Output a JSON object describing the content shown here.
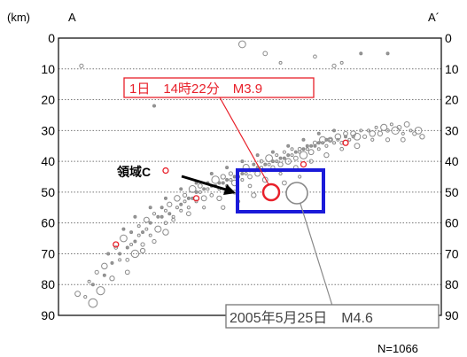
{
  "chart_data": {
    "type": "scatter",
    "title": "",
    "ylabel": "(km)",
    "ylim": [
      0,
      90
    ],
    "y_ticks": [
      "0",
      "10",
      "20",
      "30",
      "40",
      "50",
      "60",
      "70",
      "80",
      "90"
    ],
    "y_reversed": true,
    "grid": "horizontal-dotted",
    "section_start": "A",
    "section_end": "A´",
    "count_label": "N=1066",
    "region_label": "領域C",
    "highlights": [
      {
        "label": "1日　14時22分　M3.9",
        "x_frac": 0.54,
        "y": 46,
        "mag": 3.9,
        "color": "#e8202a"
      },
      {
        "label": "2005年5月25日　M4.6",
        "x_frac": 0.64,
        "y": 54,
        "mag": 4.6,
        "color": "#888888"
      }
    ],
    "series": [
      {
        "values_desc": "hypocenters",
        "points": [
          [
            0.05,
            83
          ],
          [
            0.07,
            84
          ],
          [
            0.09,
            86
          ],
          [
            0.08,
            79
          ],
          [
            0.1,
            76
          ],
          [
            0.12,
            74
          ],
          [
            0.11,
            82
          ],
          [
            0.13,
            70
          ],
          [
            0.14,
            78
          ],
          [
            0.15,
            68
          ],
          [
            0.16,
            72
          ],
          [
            0.17,
            65
          ],
          [
            0.18,
            76
          ],
          [
            0.19,
            63
          ],
          [
            0.2,
            70
          ],
          [
            0.21,
            61
          ],
          [
            0.22,
            67
          ],
          [
            0.23,
            59
          ],
          [
            0.24,
            64
          ],
          [
            0.25,
            57
          ],
          [
            0.26,
            62
          ],
          [
            0.27,
            55
          ],
          [
            0.28,
            60
          ],
          [
            0.29,
            54
          ],
          [
            0.3,
            58
          ],
          [
            0.31,
            52
          ],
          [
            0.32,
            56
          ],
          [
            0.33,
            51
          ],
          [
            0.34,
            55
          ],
          [
            0.35,
            49
          ],
          [
            0.36,
            53
          ],
          [
            0.37,
            48
          ],
          [
            0.38,
            52
          ],
          [
            0.39,
            47
          ],
          [
            0.4,
            51
          ],
          [
            0.41,
            46
          ],
          [
            0.42,
            49
          ],
          [
            0.43,
            45
          ],
          [
            0.44,
            48
          ],
          [
            0.45,
            44
          ],
          [
            0.46,
            47
          ],
          [
            0.47,
            43
          ],
          [
            0.48,
            46
          ],
          [
            0.49,
            42
          ],
          [
            0.5,
            45
          ],
          [
            0.51,
            41
          ],
          [
            0.52,
            44
          ],
          [
            0.53,
            40
          ],
          [
            0.54,
            43
          ],
          [
            0.55,
            39
          ],
          [
            0.56,
            42
          ],
          [
            0.57,
            38
          ],
          [
            0.58,
            41
          ],
          [
            0.59,
            37
          ],
          [
            0.6,
            40
          ],
          [
            0.61,
            36
          ],
          [
            0.62,
            39
          ],
          [
            0.63,
            36
          ],
          [
            0.64,
            38
          ],
          [
            0.65,
            35
          ],
          [
            0.66,
            37
          ],
          [
            0.67,
            34
          ],
          [
            0.68,
            36
          ],
          [
            0.69,
            33
          ],
          [
            0.7,
            35
          ],
          [
            0.71,
            33
          ],
          [
            0.72,
            34
          ],
          [
            0.73,
            32
          ],
          [
            0.74,
            34
          ],
          [
            0.75,
            31
          ],
          [
            0.76,
            33
          ],
          [
            0.77,
            31
          ],
          [
            0.78,
            32
          ],
          [
            0.79,
            30
          ],
          [
            0.8,
            32
          ],
          [
            0.81,
            30
          ],
          [
            0.82,
            31
          ],
          [
            0.83,
            29
          ],
          [
            0.84,
            31
          ],
          [
            0.85,
            29
          ],
          [
            0.86,
            30
          ],
          [
            0.87,
            28
          ],
          [
            0.88,
            30
          ],
          [
            0.89,
            29
          ],
          [
            0.9,
            31
          ],
          [
            0.91,
            28
          ],
          [
            0.92,
            30
          ],
          [
            0.93,
            31
          ],
          [
            0.94,
            30
          ],
          [
            0.95,
            32
          ],
          [
            0.17,
            62
          ],
          [
            0.19,
            67
          ],
          [
            0.21,
            64
          ],
          [
            0.23,
            62
          ],
          [
            0.26,
            58
          ],
          [
            0.28,
            56
          ],
          [
            0.31,
            55
          ],
          [
            0.33,
            53
          ],
          [
            0.35,
            52
          ],
          [
            0.37,
            50
          ],
          [
            0.39,
            49
          ],
          [
            0.41,
            48
          ],
          [
            0.43,
            47
          ],
          [
            0.45,
            46
          ],
          [
            0.47,
            45
          ],
          [
            0.49,
            44
          ],
          [
            0.51,
            43
          ],
          [
            0.53,
            42
          ],
          [
            0.55,
            41
          ],
          [
            0.57,
            40
          ],
          [
            0.59,
            39
          ],
          [
            0.61,
            38
          ],
          [
            0.63,
            37
          ],
          [
            0.65,
            36
          ],
          [
            0.67,
            35
          ],
          [
            0.69,
            34
          ],
          [
            0.71,
            33
          ],
          [
            0.73,
            33
          ],
          [
            0.75,
            32
          ],
          [
            0.77,
            32
          ],
          [
            0.09,
            80
          ],
          [
            0.12,
            77
          ],
          [
            0.14,
            73
          ],
          [
            0.16,
            70
          ],
          [
            0.18,
            68
          ],
          [
            0.2,
            66
          ],
          [
            0.22,
            63
          ],
          [
            0.24,
            60
          ],
          [
            0.27,
            58
          ],
          [
            0.29,
            57
          ],
          [
            0.32,
            54
          ],
          [
            0.34,
            52
          ],
          [
            0.36,
            50
          ],
          [
            0.38,
            49
          ],
          [
            0.4,
            48
          ],
          [
            0.42,
            47
          ],
          [
            0.44,
            46
          ],
          [
            0.46,
            45
          ],
          [
            0.48,
            44
          ],
          [
            0.5,
            43
          ],
          [
            0.52,
            42
          ],
          [
            0.54,
            41
          ],
          [
            0.56,
            40
          ],
          [
            0.58,
            39
          ],
          [
            0.6,
            38
          ],
          [
            0.62,
            37
          ],
          [
            0.64,
            36
          ],
          [
            0.66,
            35
          ],
          [
            0.68,
            34
          ],
          [
            0.7,
            33
          ],
          [
            0.3,
            59
          ],
          [
            0.34,
            57
          ],
          [
            0.38,
            55
          ],
          [
            0.42,
            52
          ],
          [
            0.46,
            50
          ],
          [
            0.5,
            48
          ],
          [
            0.54,
            46
          ],
          [
            0.58,
            44
          ],
          [
            0.62,
            42
          ],
          [
            0.66,
            40
          ],
          [
            0.7,
            38
          ],
          [
            0.74,
            36
          ],
          [
            0.78,
            35
          ],
          [
            0.82,
            33
          ],
          [
            0.86,
            33
          ],
          [
            0.9,
            33
          ],
          [
            0.2,
            58
          ],
          [
            0.24,
            55
          ],
          [
            0.28,
            52
          ],
          [
            0.32,
            49
          ],
          [
            0.36,
            47
          ],
          [
            0.4,
            44
          ],
          [
            0.44,
            42
          ],
          [
            0.48,
            40
          ],
          [
            0.52,
            38
          ],
          [
            0.56,
            37
          ],
          [
            0.6,
            35
          ],
          [
            0.64,
            33
          ],
          [
            0.68,
            31
          ],
          [
            0.72,
            30
          ],
          [
            0.43,
            55
          ],
          [
            0.47,
            53
          ],
          [
            0.51,
            51
          ],
          [
            0.55,
            49
          ],
          [
            0.59,
            47
          ],
          [
            0.63,
            45
          ],
          [
            0.28,
            63
          ],
          [
            0.25,
            66
          ],
          [
            0.22,
            69
          ],
          [
            0.18,
            72
          ],
          [
            0.06,
            9
          ],
          [
            0.48,
            2
          ],
          [
            0.54,
            5
          ],
          [
            0.58,
            8
          ],
          [
            0.67,
            6
          ],
          [
            0.72,
            9
          ],
          [
            0.74,
            8
          ],
          [
            0.86,
            5
          ],
          [
            0.25,
            22
          ],
          [
            0.79,
            5
          ]
        ],
        "mags": [
          2.5,
          2.0,
          3.1,
          1.8,
          2.2,
          2.6,
          3.0,
          1.6,
          2.4,
          2.1,
          1.9,
          2.8,
          2.3,
          1.5,
          2.9,
          1.7,
          2.2,
          2.5,
          1.8,
          2.0,
          2.7,
          1.6,
          2.1,
          2.4,
          1.9,
          2.6,
          1.7,
          2.2,
          2.0,
          2.8,
          1.8,
          2.3,
          2.5,
          1.6,
          2.1,
          2.9,
          1.9,
          2.4,
          1.7,
          2.2,
          2.6,
          2.0,
          1.8,
          2.7,
          2.3,
          1.6,
          2.5,
          2.1,
          1.9,
          2.8,
          2.2,
          1.7,
          2.4,
          2.0,
          2.6,
          1.8,
          2.3,
          2.1,
          2.9,
          1.6,
          2.5,
          2.2,
          1.9,
          2.7,
          2.0,
          2.4,
          1.8,
          2.6,
          2.1,
          2.3,
          1.7,
          2.5,
          2.8,
          1.9,
          2.2,
          2.0,
          2.6,
          1.8,
          2.4,
          2.7,
          2.1,
          1.9,
          2.9,
          2.3,
          2.0,
          2.5,
          1.7,
          2.2,
          2.8,
          2.4,
          1.6,
          1.8,
          1.7,
          1.9,
          1.6,
          1.8,
          1.7,
          1.9,
          1.6,
          1.8,
          1.7,
          1.9,
          1.6,
          1.8,
          1.7,
          1.9,
          1.6,
          1.8,
          1.7,
          1.9,
          1.6,
          1.8,
          1.7,
          1.9,
          1.6,
          1.8,
          1.7,
          1.9,
          1.6,
          1.8,
          1.5,
          1.6,
          1.5,
          1.6,
          1.5,
          1.6,
          1.5,
          1.6,
          1.5,
          1.6,
          1.5,
          1.6,
          1.5,
          1.6,
          1.5,
          1.6,
          1.5,
          1.6,
          1.5,
          1.6,
          1.5,
          1.6,
          1.5,
          1.6,
          1.5,
          1.6,
          1.5,
          1.6,
          1.5,
          1.6,
          2.1,
          2.3,
          2.0,
          2.4,
          2.2,
          2.1,
          2.5,
          2.0,
          2.3,
          2.2,
          2.4,
          2.1,
          2.5,
          2.0,
          2.2,
          2.3,
          1.5,
          1.6,
          1.5,
          1.6,
          1.5,
          1.6,
          1.5,
          1.6,
          1.5,
          1.6,
          1.5,
          1.6,
          1.5,
          1.6,
          2.2,
          2.0,
          2.4,
          2.1,
          2.3,
          2.0,
          2.6,
          2.2,
          2.4,
          2.1,
          2.2,
          2.8,
          2.3,
          1.9,
          2.1,
          2.2,
          1.8,
          1.6,
          1.5,
          1.4
        ]
      }
    ],
    "red_points": [
      [
        0.15,
        67
      ],
      [
        0.36,
        52
      ],
      [
        0.64,
        41
      ],
      [
        0.75,
        34
      ],
      [
        0.28,
        43
      ]
    ]
  }
}
